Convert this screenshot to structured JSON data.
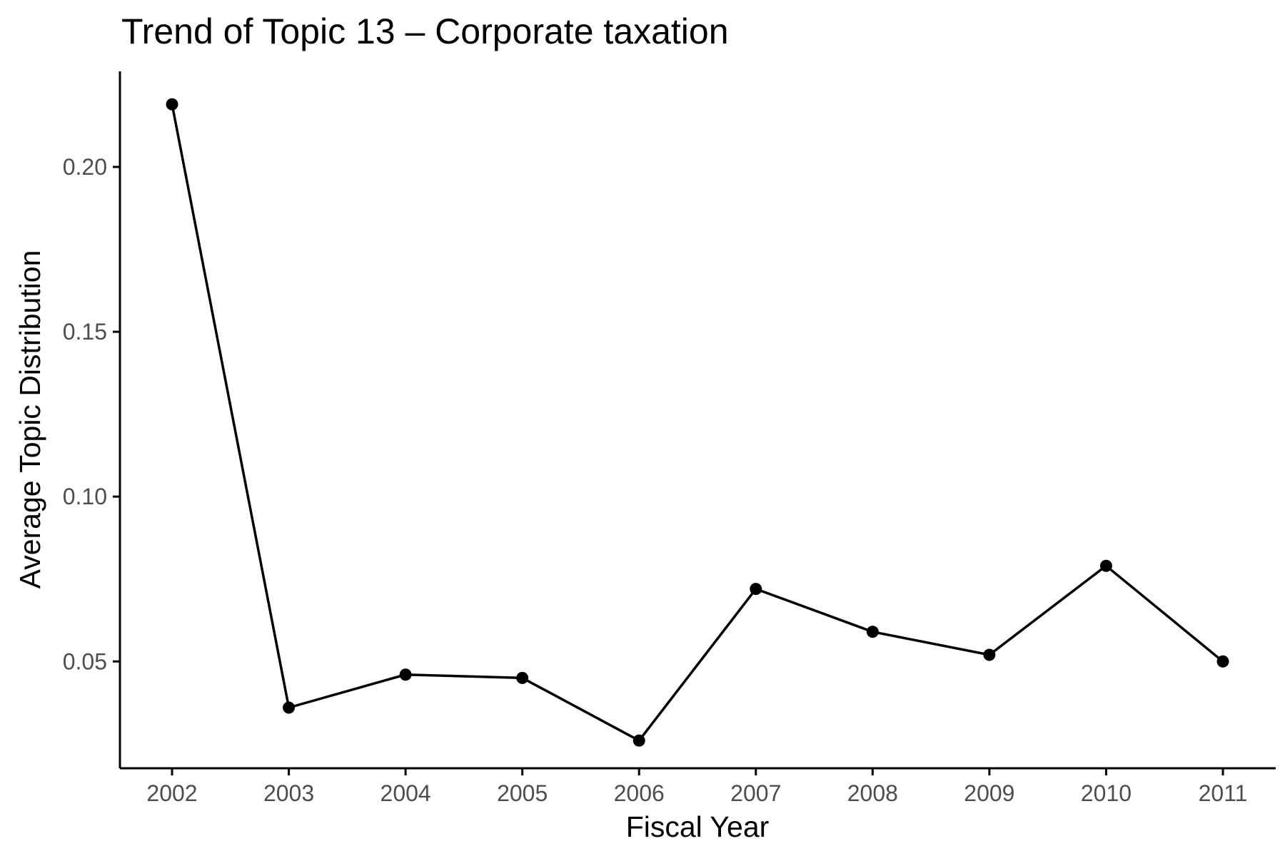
{
  "chart_data": {
    "type": "line",
    "title": "Trend of Topic 13 – Corporate taxation",
    "xlabel": "Fiscal Year",
    "ylabel": "Average Topic Distribution",
    "x": [
      "2002",
      "2003",
      "2004",
      "2005",
      "2006",
      "2007",
      "2008",
      "2009",
      "2010",
      "2011"
    ],
    "series": [
      {
        "values": [
          0.219,
          0.036,
          0.046,
          0.045,
          0.026,
          0.072,
          0.059,
          0.052,
          0.079,
          0.05
        ]
      }
    ],
    "yticks": [
      "0.05",
      "0.10",
      "0.15",
      "0.20"
    ],
    "ylim": [
      0.0176,
      0.229
    ],
    "grid": false,
    "legend": "none",
    "colors": {
      "line": "#000000",
      "point": "#000000",
      "axis": "#000000",
      "tick_label": "#4d4d4d"
    }
  }
}
